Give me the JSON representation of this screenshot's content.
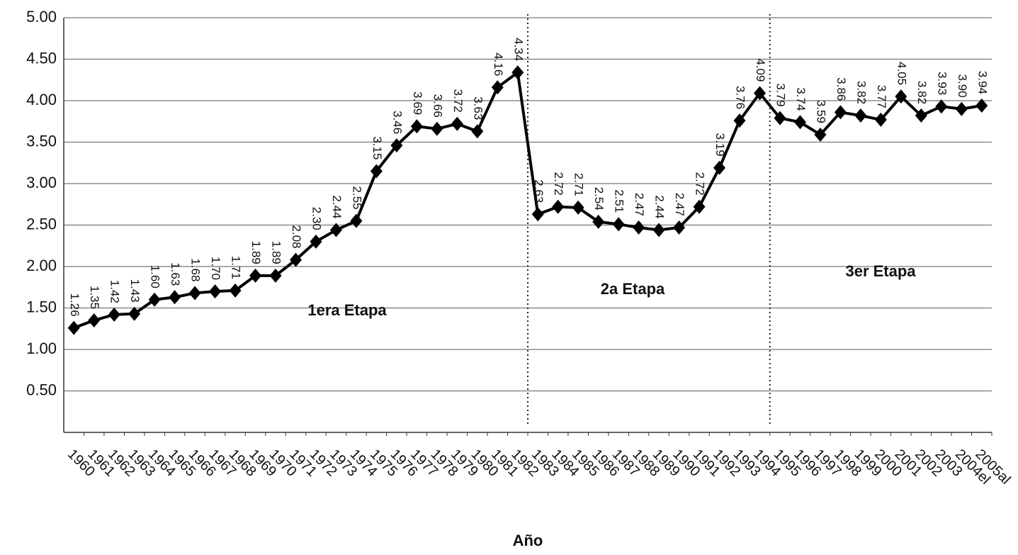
{
  "chart_data": {
    "type": "line",
    "x_label": "Año",
    "categories": [
      "1960",
      "1961",
      "1962",
      "1963",
      "1964",
      "1965",
      "1966",
      "1967",
      "1968",
      "1969",
      "1970",
      "1971",
      "1972",
      "1973",
      "1974",
      "1975",
      "1976",
      "1977",
      "1978",
      "1979",
      "1980",
      "1981",
      "1982",
      "1983",
      "1984",
      "1985",
      "1986",
      "1987",
      "1988",
      "1989",
      "1990",
      "1991",
      "1992",
      "1993",
      "1994",
      "1995",
      "1996",
      "1997",
      "1998",
      "1999",
      "2000",
      "2001",
      "2002",
      "2003",
      "2004el",
      "2005al"
    ],
    "series": [
      {
        "color": "#000000",
        "values": [
          1.26,
          1.35,
          1.42,
          1.43,
          1.6,
          1.63,
          1.68,
          1.7,
          1.71,
          1.89,
          1.89,
          2.08,
          2.3,
          2.44,
          2.55,
          3.15,
          3.46,
          3.69,
          3.66,
          3.72,
          3.63,
          4.16,
          4.34,
          2.63,
          2.72,
          2.71,
          2.54,
          2.51,
          2.47,
          2.44,
          2.47,
          2.72,
          3.19,
          3.76,
          4.09,
          3.79,
          3.74,
          3.59,
          3.86,
          3.82,
          3.77,
          4.05,
          3.82,
          3.93,
          3.9,
          3.94
        ],
        "value_labels": [
          "1.26",
          "1.35",
          "1.42",
          "1.43",
          "1.60",
          "1.63",
          "1.68",
          "1.70",
          "1.71",
          "1.89",
          "1.89",
          "2.08",
          "2.30",
          "2.44",
          "2.55",
          "3.15",
          "3.46",
          "3.69",
          "3.66",
          "3.72",
          "3.63",
          "4.16",
          "4.34",
          "2.63",
          "2.72",
          "2.71",
          "2.54",
          "2.51",
          "2.47",
          "2.44",
          "2.47",
          "2.72",
          "3.19",
          "3.76",
          "4.09",
          "3.79",
          "3.74",
          "3.59",
          "3.86",
          "3.82",
          "3.77",
          "4.05",
          "3.82",
          "3.93",
          "3.90",
          "3.94"
        ]
      }
    ],
    "ylim": [
      0,
      5
    ],
    "yticks": [
      {
        "value": 0.5,
        "label": "0.50"
      },
      {
        "value": 1,
        "label": "1.00"
      },
      {
        "value": 1.5,
        "label": "1.50"
      },
      {
        "value": 2,
        "label": "2.00"
      },
      {
        "value": 2.5,
        "label": "2.50"
      },
      {
        "value": 3,
        "label": "3.00"
      },
      {
        "value": 3.5,
        "label": "3.50"
      },
      {
        "value": 4,
        "label": "4.00"
      },
      {
        "value": 4.5,
        "label": "4.50"
      },
      {
        "value": 5,
        "label": "5.00"
      }
    ],
    "grid": true,
    "annotations": [
      "1era Etapa",
      "2a Etapa",
      "3er Etapa"
    ]
  }
}
